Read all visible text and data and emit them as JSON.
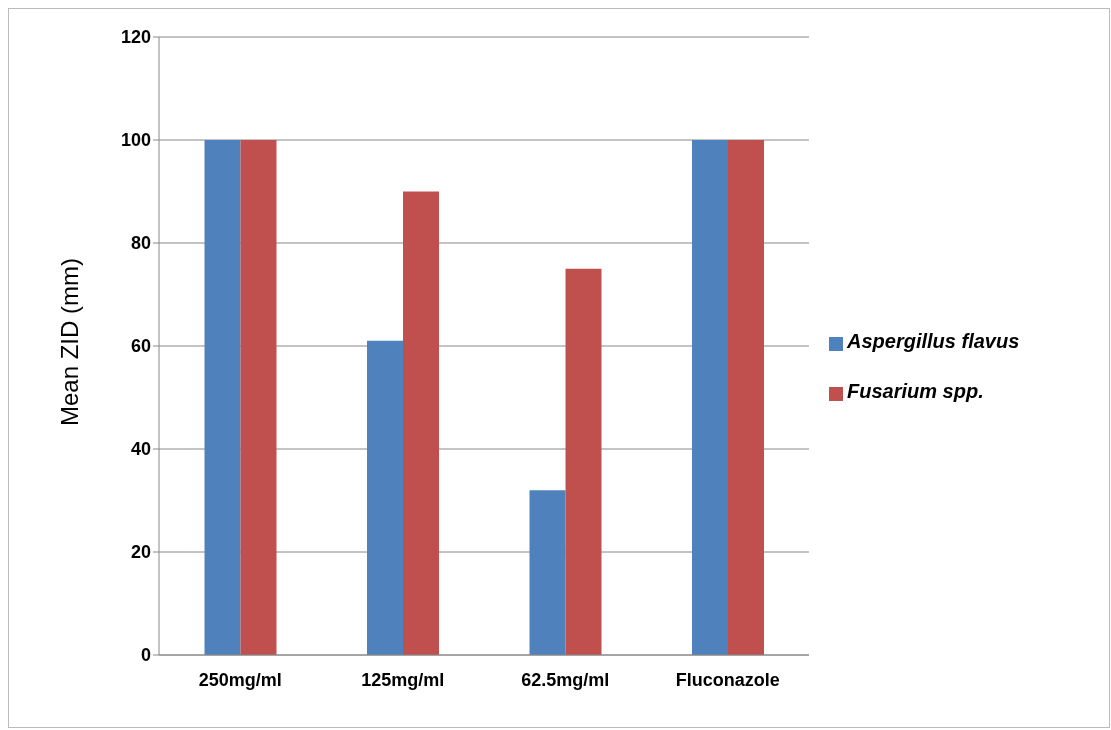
{
  "chart_data": {
    "type": "bar",
    "ylabel": "Mean ZID (mm)",
    "categories": [
      "250mg/ml",
      "125mg/ml",
      "62.5mg/ml",
      "Fluconazole"
    ],
    "series": [
      {
        "name": "Aspergillus flavus",
        "color": "#4f81bd",
        "values": [
          100,
          61,
          32,
          100
        ]
      },
      {
        "name": "Fusarium spp.",
        "color": "#c0504d",
        "values": [
          100,
          90,
          75,
          100
        ]
      }
    ],
    "ylim": [
      0,
      120
    ],
    "yticks": [
      0,
      20,
      40,
      60,
      80,
      100,
      120
    ],
    "grid": "y",
    "legend": "right"
  }
}
